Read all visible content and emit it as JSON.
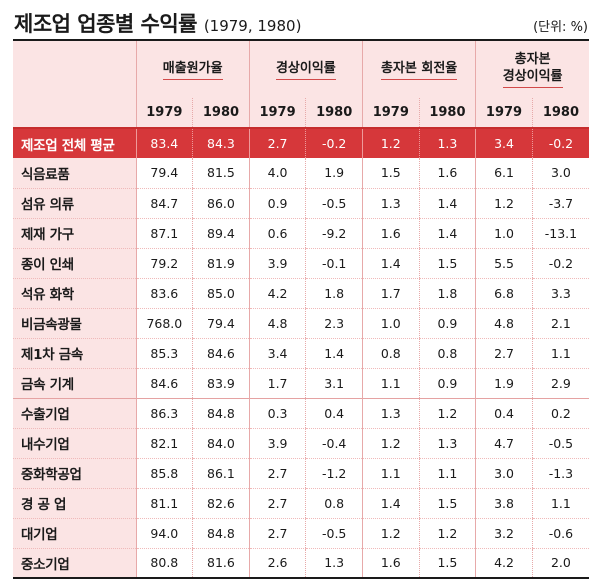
{
  "title": {
    "main": "제조업 업종별 수익률",
    "period": "(1979, 1980)",
    "unit": "(단위: %)"
  },
  "header": {
    "groups": [
      {
        "label": "매출원가율"
      },
      {
        "label": "경상이익률"
      },
      {
        "label": "총자본 회전율"
      },
      {
        "label": "총자본\n경상이익률"
      }
    ],
    "years": [
      "1979",
      "1980",
      "1979",
      "1980",
      "1979",
      "1980",
      "1979",
      "1980"
    ]
  },
  "rows": [
    {
      "label": "제조업 전체 평균",
      "values": [
        "83.4",
        "84.3",
        "2.7",
        "-0.2",
        "1.2",
        "1.3",
        "3.4",
        "-0.2"
      ]
    },
    {
      "label": "식음료품",
      "values": [
        "79.4",
        "81.5",
        "4.0",
        "1.9",
        "1.5",
        "1.6",
        "6.1",
        "3.0"
      ]
    },
    {
      "label": "섬유 의류",
      "values": [
        "84.7",
        "86.0",
        "0.9",
        "-0.5",
        "1.3",
        "1.4",
        "1.2",
        "-3.7"
      ]
    },
    {
      "label": "제재 가구",
      "values": [
        "87.1",
        "89.4",
        "0.6",
        "-9.2",
        "1.6",
        "1.4",
        "1.0",
        "-13.1"
      ]
    },
    {
      "label": "종이 인쇄",
      "values": [
        "79.2",
        "81.9",
        "3.9",
        "-0.1",
        "1.4",
        "1.5",
        "5.5",
        "-0.2"
      ]
    },
    {
      "label": "석유 화학",
      "values": [
        "83.6",
        "85.0",
        "4.2",
        "1.8",
        "1.7",
        "1.8",
        "6.8",
        "3.3"
      ]
    },
    {
      "label": "비금속광물",
      "values": [
        "768.0",
        "79.4",
        "4.8",
        "2.3",
        "1.0",
        "0.9",
        "4.8",
        "2.1"
      ]
    },
    {
      "label": "제1차 금속",
      "values": [
        "85.3",
        "84.6",
        "3.4",
        "1.4",
        "0.8",
        "0.8",
        "2.7",
        "1.1"
      ]
    },
    {
      "label": "금속 기계",
      "values": [
        "84.6",
        "83.9",
        "1.7",
        "3.1",
        "1.1",
        "0.9",
        "1.9",
        "2.9"
      ]
    },
    {
      "label": "수출기업",
      "values": [
        "86.3",
        "84.8",
        "0.3",
        "0.4",
        "1.3",
        "1.2",
        "0.4",
        "0.2"
      ]
    },
    {
      "label": "내수기업",
      "values": [
        "82.1",
        "84.0",
        "3.9",
        "-0.4",
        "1.2",
        "1.3",
        "4.7",
        "-0.5"
      ]
    },
    {
      "label": "중화학공업",
      "values": [
        "85.8",
        "86.1",
        "2.7",
        "-1.2",
        "1.1",
        "1.1",
        "3.0",
        "-1.3"
      ]
    },
    {
      "label": "경 공 업",
      "values": [
        "81.1",
        "82.6",
        "2.7",
        "0.8",
        "1.4",
        "1.5",
        "3.8",
        "1.1"
      ]
    },
    {
      "label": "대기업",
      "values": [
        "94.0",
        "84.8",
        "2.7",
        "-0.5",
        "1.2",
        "1.2",
        "3.2",
        "-0.6"
      ]
    },
    {
      "label": "중소기업",
      "values": [
        "80.8",
        "81.6",
        "2.6",
        "1.3",
        "1.6",
        "1.5",
        "4.2",
        "2.0"
      ]
    }
  ]
}
